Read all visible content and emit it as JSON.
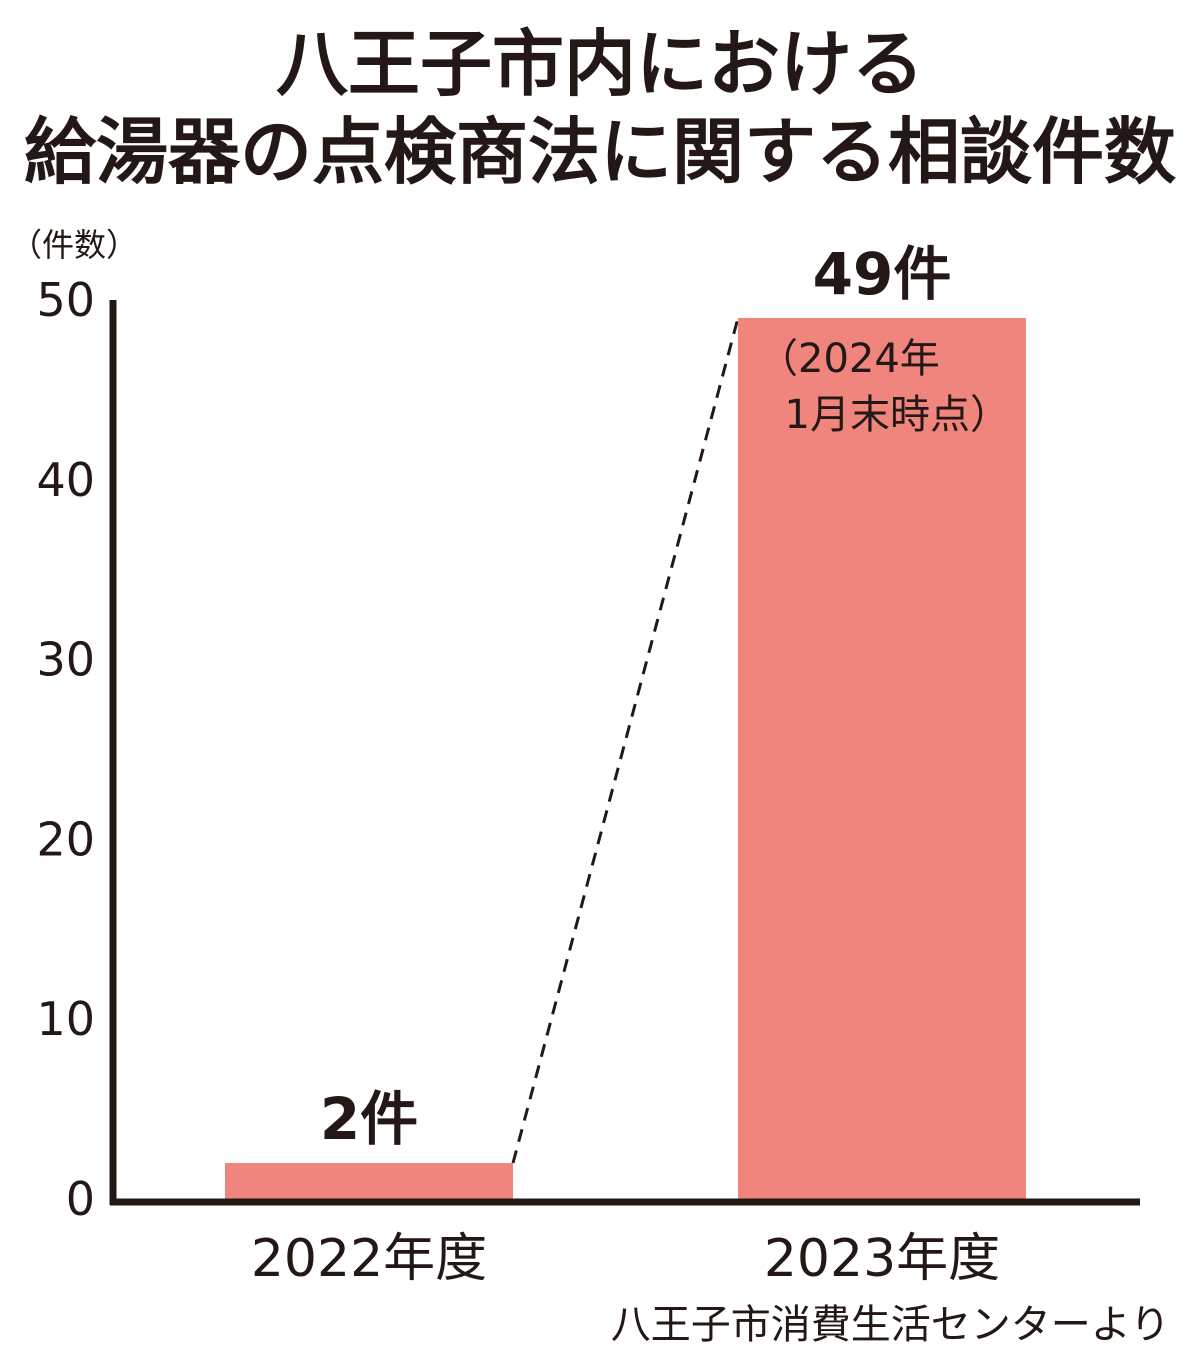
{
  "chart_data": {
    "type": "bar",
    "title": "八王子市内における",
    "subtitle": "給湯器の点検商法に関する相談件数",
    "ylabel": "（件数）",
    "categories": [
      "2022年度",
      "2023年度"
    ],
    "values": [
      2,
      49
    ],
    "data_labels": [
      "2件",
      "49件"
    ],
    "annotation": [
      "（2024年",
      "1月末時点）"
    ],
    "yticks": [
      "0",
      "10",
      "20",
      "30",
      "40",
      "50"
    ],
    "ylim": [
      0,
      50
    ],
    "grid": false,
    "legend": "none",
    "bar_color": "#ef857d",
    "axis_color": "#231815",
    "connector": "dashed line linking the top of the 2022 bar to the top of the 2023 bar",
    "source": "八王子市消費生活センターより"
  }
}
